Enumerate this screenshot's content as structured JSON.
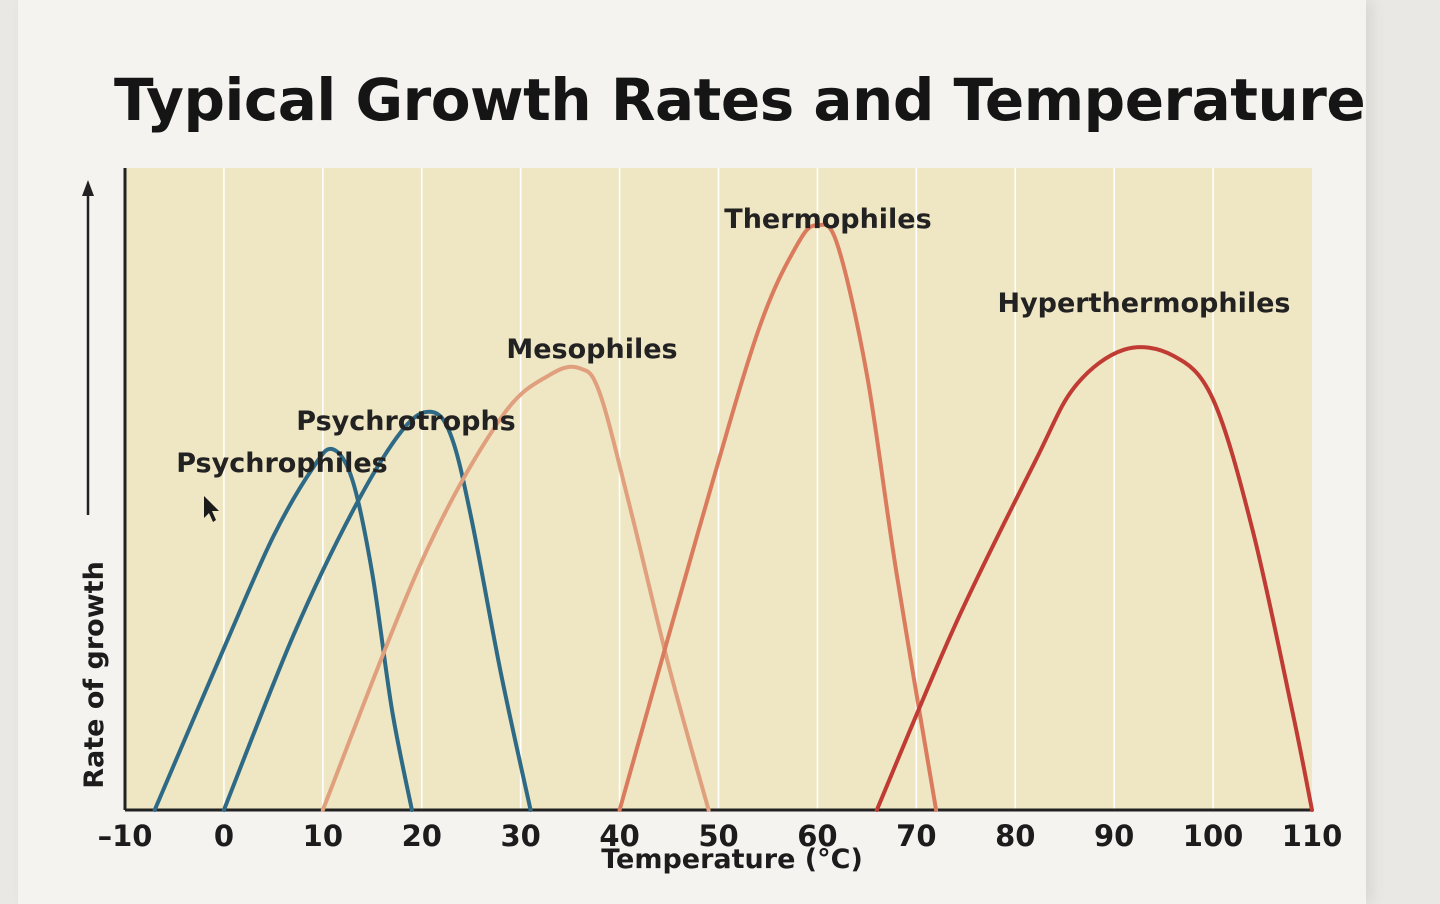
{
  "slide": {
    "title": "Typical Growth Rates and Temperature"
  },
  "chart_data": {
    "type": "line",
    "title": "Typical Growth Rates and Temperature",
    "xlabel": "Temperature (°C)",
    "ylabel": "Rate of growth",
    "xlim": [
      -10,
      110
    ],
    "ylim": [
      0,
      1
    ],
    "x_ticks": [
      "–10",
      "0",
      "10",
      "20",
      "30",
      "40",
      "50",
      "60",
      "70",
      "80",
      "90",
      "100",
      "110"
    ],
    "grid": "vertical lines at each 10 °C",
    "legend": "none (curves labeled directly)",
    "colors": {
      "background": "#efe6c3",
      "grid": "#ffffff",
      "psychrophiles": "#2e6a86",
      "psychrotrophs": "#2e6a86",
      "mesophiles": "#e0a07e",
      "thermophiles": "#db7b5e",
      "hyperthermophiles": "#c03b33"
    },
    "series": [
      {
        "name": "Psychrophiles",
        "x": [
          -7,
          0,
          5,
          9,
          11,
          13,
          15,
          17,
          19
        ],
        "y": [
          0,
          0.26,
          0.44,
          0.55,
          0.58,
          0.53,
          0.38,
          0.16,
          0
        ]
      },
      {
        "name": "Psychrotrophs",
        "x": [
          0,
          7,
          13,
          18,
          21,
          23,
          25,
          28,
          31
        ],
        "y": [
          0,
          0.28,
          0.48,
          0.61,
          0.64,
          0.6,
          0.47,
          0.22,
          0
        ]
      },
      {
        "name": "Mesophiles",
        "x": [
          10,
          20,
          28,
          33,
          36,
          38,
          41,
          45,
          49
        ],
        "y": [
          0,
          0.4,
          0.63,
          0.7,
          0.71,
          0.67,
          0.49,
          0.23,
          0
        ]
      },
      {
        "name": "Thermophiles",
        "x": [
          40,
          48,
          54,
          58,
          60,
          62,
          65,
          68,
          72
        ],
        "y": [
          0,
          0.45,
          0.77,
          0.91,
          0.94,
          0.91,
          0.7,
          0.38,
          0
        ]
      },
      {
        "name": "Hyperthermophiles",
        "x": [
          66,
          74,
          82,
          86,
          91,
          96,
          100,
          104,
          108,
          110
        ],
        "y": [
          0,
          0.3,
          0.56,
          0.68,
          0.74,
          0.73,
          0.66,
          0.45,
          0.16,
          0
        ]
      }
    ]
  }
}
